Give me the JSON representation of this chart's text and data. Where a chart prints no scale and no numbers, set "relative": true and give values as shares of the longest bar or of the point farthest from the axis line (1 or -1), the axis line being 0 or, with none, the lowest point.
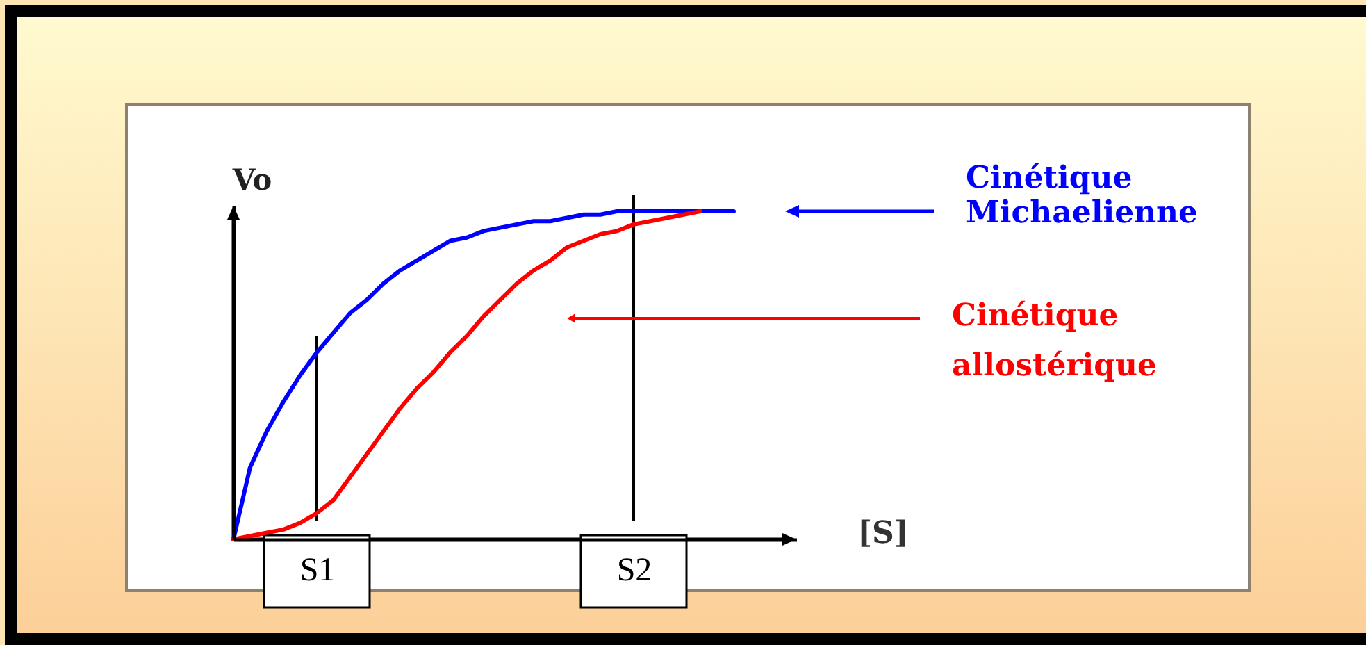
{
  "chart_data": {
    "type": "line",
    "relative": true,
    "xlabel": "[S]",
    "ylabel": "Vo",
    "tick_labels": "x",
    "grid": false,
    "categories": [
      null,
      null,
      null,
      null,
      null,
      "S1",
      null,
      null,
      null,
      null,
      null,
      null,
      null,
      null,
      null,
      null,
      null,
      null,
      null,
      null,
      null,
      null,
      null,
      null,
      "S2",
      null,
      null,
      null,
      null,
      null,
      null
    ],
    "series": [
      {
        "name": "Cinétique Michaelienne",
        "color": "#0000ff",
        "values": [
          0,
          0.22,
          0.33,
          0.42,
          0.5,
          0.57,
          0.63,
          0.69,
          0.73,
          0.78,
          0.82,
          0.85,
          0.88,
          0.91,
          0.92,
          0.94,
          0.95,
          0.96,
          0.97,
          0.97,
          0.98,
          0.99,
          0.99,
          1,
          1,
          1,
          1,
          1,
          1,
          1,
          1
        ]
      },
      {
        "name": "Cinétique allostérique",
        "color": "#ff0000",
        "values": [
          0,
          0.01,
          0.02,
          0.03,
          0.05,
          0.08,
          0.12,
          0.19,
          0.26,
          0.33,
          0.4,
          0.46,
          0.51,
          0.57,
          0.62,
          0.68,
          0.73,
          0.78,
          0.82,
          0.85,
          0.89,
          0.91,
          0.93,
          0.94,
          0.96,
          0.97,
          0.98,
          0.99,
          1,
          null,
          null
        ]
      }
    ],
    "ref_lines": [
      {
        "axis": "x",
        "value": "S1"
      },
      {
        "axis": "x",
        "value": "S2"
      }
    ]
  }
}
